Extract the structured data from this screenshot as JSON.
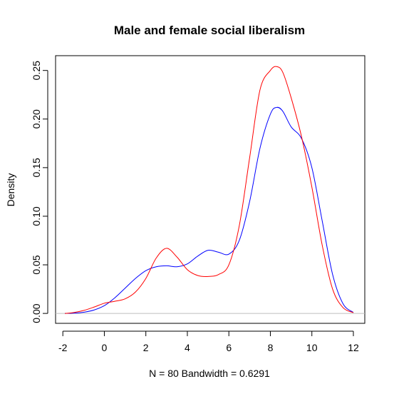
{
  "chart_data": {
    "type": "line",
    "title": "Male and female social liberalism",
    "xlabel": "N = 80   Bandwidth = 0.6291",
    "ylabel": "Density",
    "xlim": [
      -2.35,
      12.55
    ],
    "ylim": [
      -0.0102,
      0.2652
    ],
    "x_ticks": [
      -2,
      0,
      2,
      4,
      6,
      8,
      10,
      12
    ],
    "x_tick_labels": [
      "-2",
      "0",
      "2",
      "4",
      "6",
      "8",
      "10",
      "12"
    ],
    "y_ticks": [
      0.0,
      0.05,
      0.1,
      0.15,
      0.2,
      0.25
    ],
    "y_tick_labels": [
      "0.00",
      "0.05",
      "0.10",
      "0.15",
      "0.20",
      "0.25"
    ],
    "baseline": 0,
    "grid": false,
    "legend": "none",
    "series": [
      {
        "color": "#0000ff",
        "x": [
          -1.9,
          -1.5,
          -1.0,
          -0.5,
          0.0,
          0.5,
          1.0,
          1.5,
          2.0,
          2.5,
          3.0,
          3.5,
          4.0,
          4.5,
          5.0,
          5.5,
          6.0,
          6.5,
          7.0,
          7.5,
          8.0,
          8.3,
          8.6,
          9.0,
          9.5,
          10.0,
          10.5,
          11.0,
          11.5,
          12.0
        ],
        "y": [
          0.0,
          0.0003,
          0.0012,
          0.0035,
          0.008,
          0.016,
          0.026,
          0.036,
          0.044,
          0.048,
          0.049,
          0.048,
          0.051,
          0.059,
          0.065,
          0.063,
          0.061,
          0.075,
          0.115,
          0.17,
          0.205,
          0.212,
          0.208,
          0.192,
          0.18,
          0.15,
          0.095,
          0.04,
          0.01,
          0.001
        ]
      },
      {
        "color": "#ff0000",
        "x": [
          -1.9,
          -1.5,
          -1.0,
          -0.5,
          0.0,
          0.5,
          1.0,
          1.5,
          2.0,
          2.5,
          3.0,
          3.5,
          4.0,
          4.5,
          5.0,
          5.5,
          6.0,
          6.5,
          7.0,
          7.5,
          8.0,
          8.3,
          8.6,
          9.0,
          9.5,
          10.0,
          10.5,
          11.0,
          11.5,
          12.0
        ],
        "y": [
          0.0,
          0.0008,
          0.003,
          0.0065,
          0.0105,
          0.0125,
          0.015,
          0.022,
          0.036,
          0.057,
          0.067,
          0.058,
          0.045,
          0.039,
          0.038,
          0.04,
          0.05,
          0.09,
          0.16,
          0.23,
          0.25,
          0.254,
          0.248,
          0.222,
          0.182,
          0.13,
          0.07,
          0.025,
          0.006,
          0.0008
        ]
      }
    ]
  }
}
